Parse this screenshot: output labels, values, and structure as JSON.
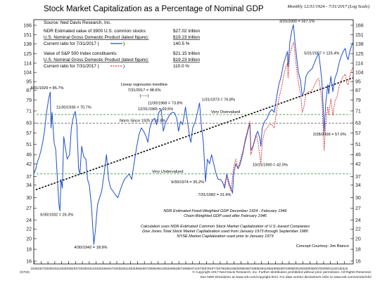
{
  "chart_data": {
    "type": "line",
    "title": "Stock Market Capitalization as a Percentage of Nominal GDP",
    "subtitle": "Monthly 12/31/1924 - 7/31/2017 (Log Scale)",
    "source": "Source: Ned Davis Research, Inc.",
    "scale": "log",
    "ylim": [
      16,
      166
    ],
    "y_ticks": [
      16,
      18,
      20,
      22,
      24,
      27,
      30,
      34,
      37,
      42,
      46,
      51,
      57,
      63,
      71,
      79,
      87,
      95,
      104,
      114,
      125,
      138,
      151,
      166
    ],
    "x_ticks": [
      "1925",
      "1927",
      "1929",
      "1931",
      "1933",
      "1935",
      "1937",
      "1939",
      "1941",
      "1943",
      "1945",
      "1947",
      "1949",
      "1951",
      "1953",
      "1955",
      "1957",
      "1959",
      "1961",
      "1963",
      "1965",
      "1967",
      "1969",
      "1971",
      "1973",
      "1975",
      "1977",
      "1979",
      "1981",
      "1983",
      "1985",
      "1987",
      "1989",
      "1991",
      "1993",
      "1995",
      "1997",
      "1999",
      "2001",
      "2003",
      "2005",
      "2007",
      "2009",
      "2011",
      "2013",
      "2015"
    ],
    "xlim": [
      1924.9,
      2017.6
    ],
    "info_box_1": {
      "rows": [
        {
          "label": "NDR Estimated value of 3900 U.S. common stocks:",
          "value": "$27.02 trillion"
        },
        {
          "label": "U.S. Nominal Gross Domestic Product (latest figure):",
          "value": "$19.23 trillion"
        },
        {
          "label": "Current ratio for 7/31/2017 (",
          "value": "140.5 %"
        }
      ]
    },
    "info_box_2": {
      "rows": [
        {
          "label": "Value of S&P 500 Index constituents:",
          "value": "$21.15 trillion"
        },
        {
          "label": "U.S. Nominal Gross Domestic Product (latest figure):",
          "value": "$19.23 trillion"
        },
        {
          "label": "Current ratio for 7/31/2017 (",
          "value": "110.0 %"
        }
      ]
    },
    "regression": {
      "label_1": "Linear regression trendline",
      "label_2": "7/31/2017 = 98.6%",
      "label_3": "(-----)",
      "start": [
        1925.5,
        32.5
      ],
      "end": [
        2017.5,
        98.6
      ]
    },
    "reference_lines": [
      {
        "name": "Very Overvalued",
        "value": 68.5,
        "color": "#2e8b2e"
      },
      {
        "name": "Norm Since 1925 = 62.8%",
        "value": 62.8,
        "color": "#555555"
      },
      {
        "name": "Very Undervalued",
        "value": 38.0,
        "color": "#2e8b2e"
      }
    ],
    "series": [
      {
        "color": "#1f4fcf",
        "points": [
          [
            1924.9,
            38
          ],
          [
            1925.5,
            40
          ],
          [
            1926,
            43
          ],
          [
            1926.5,
            45
          ],
          [
            1927,
            48
          ],
          [
            1927.5,
            52
          ],
          [
            1928,
            58
          ],
          [
            1928.5,
            68
          ],
          [
            1929.2,
            80
          ],
          [
            1929.67,
            85.7
          ],
          [
            1929.9,
            60
          ],
          [
            1930.2,
            70
          ],
          [
            1930.8,
            52
          ],
          [
            1931.3,
            48
          ],
          [
            1931.8,
            35
          ],
          [
            1932.2,
            28
          ],
          [
            1932.5,
            26.3
          ],
          [
            1932.8,
            36
          ],
          [
            1933.2,
            33
          ],
          [
            1933.6,
            55
          ],
          [
            1934,
            50
          ],
          [
            1934.6,
            44
          ],
          [
            1935.3,
            46
          ],
          [
            1935.8,
            60
          ],
          [
            1936.3,
            66
          ],
          [
            1936.92,
            70.7
          ],
          [
            1937.4,
            62
          ],
          [
            1937.9,
            40
          ],
          [
            1938.3,
            38
          ],
          [
            1938.8,
            50
          ],
          [
            1939.4,
            45
          ],
          [
            1940,
            44
          ],
          [
            1940.5,
            36
          ],
          [
            1941,
            34
          ],
          [
            1941.6,
            28
          ],
          [
            1942.33,
            18.9
          ],
          [
            1942.8,
            22
          ],
          [
            1943.4,
            28
          ],
          [
            1944,
            30
          ],
          [
            1944.6,
            32
          ],
          [
            1945.3,
            38
          ],
          [
            1946,
            46
          ],
          [
            1946.6,
            36
          ],
          [
            1947.2,
            33
          ],
          [
            1947.9,
            32
          ],
          [
            1948.5,
            31
          ],
          [
            1949.3,
            30
          ],
          [
            1949.9,
            32
          ],
          [
            1950.5,
            34
          ],
          [
            1951.2,
            36
          ],
          [
            1951.9,
            37
          ],
          [
            1952.6,
            38
          ],
          [
            1953.3,
            36
          ],
          [
            1954,
            42
          ],
          [
            1954.7,
            49
          ],
          [
            1955.4,
            56
          ],
          [
            1956.1,
            60
          ],
          [
            1956.8,
            58
          ],
          [
            1957.5,
            55
          ],
          [
            1958,
            52
          ],
          [
            1958.6,
            60
          ],
          [
            1959.2,
            64
          ],
          [
            1959.9,
            66
          ],
          [
            1960.5,
            62
          ],
          [
            1961.2,
            70
          ],
          [
            1961.9,
            72
          ],
          [
            1962.5,
            58
          ],
          [
            1963.1,
            63
          ],
          [
            1963.8,
            66
          ],
          [
            1964.5,
            69
          ],
          [
            1965.2,
            70
          ],
          [
            1965.8,
            69.5
          ],
          [
            1966.4,
            66
          ],
          [
            1966.9,
            58
          ],
          [
            1967.5,
            64
          ],
          [
            1968.1,
            62
          ],
          [
            1968.92,
            73.8
          ],
          [
            1969.5,
            64
          ],
          [
            1970.2,
            54
          ],
          [
            1970.5,
            52
          ],
          [
            1971,
            60
          ],
          [
            1971.8,
            64
          ],
          [
            1972.4,
            70
          ],
          [
            1973.0,
            76.8
          ],
          [
            1973.5,
            62
          ],
          [
            1974.1,
            52
          ],
          [
            1974.74,
            35.2
          ],
          [
            1975.3,
            44
          ],
          [
            1975.9,
            42
          ],
          [
            1976.5,
            46
          ],
          [
            1977.1,
            42
          ],
          [
            1977.8,
            38
          ],
          [
            1978.4,
            36
          ],
          [
            1979,
            36
          ],
          [
            1979.7,
            35
          ],
          [
            1980.3,
            33
          ],
          [
            1980.9,
            38
          ],
          [
            1981.5,
            35
          ],
          [
            1982.58,
            31.4
          ],
          [
            1982.9,
            38
          ],
          [
            1983.5,
            42
          ],
          [
            1984.2,
            40
          ],
          [
            1984.8,
            42
          ],
          [
            1985.5,
            46
          ],
          [
            1986.2,
            52
          ],
          [
            1987.6,
            63
          ],
          [
            1987.9,
            48
          ],
          [
            1988.5,
            50
          ],
          [
            1989.4,
            56
          ],
          [
            1989.9,
            58
          ],
          [
            1990.5,
            54
          ],
          [
            1990.79,
            50
          ],
          [
            1991.2,
            60
          ],
          [
            1991.9,
            64
          ],
          [
            1992.6,
            66
          ],
          [
            1993.3,
            70
          ],
          [
            1994,
            72
          ],
          [
            1994.7,
            70
          ],
          [
            1995.4,
            82
          ],
          [
            1996,
            92
          ],
          [
            1996.7,
            100
          ],
          [
            1997.3,
            112
          ],
          [
            1997.9,
            120
          ],
          [
            1998.5,
            128
          ],
          [
            1998.7,
            110
          ],
          [
            1999.2,
            140
          ],
          [
            1999.8,
            158
          ],
          [
            2000.25,
            167.1
          ],
          [
            2000.7,
            140
          ],
          [
            2001.2,
            120
          ],
          [
            2001.7,
            104
          ],
          [
            2002.3,
            96
          ],
          [
            2002.8,
            82
          ],
          [
            2003.3,
            86
          ],
          [
            2003.9,
            100
          ],
          [
            2004.5,
            104
          ],
          [
            2005.1,
            106
          ],
          [
            2005.7,
            108
          ],
          [
            2006.3,
            114
          ],
          [
            2006.9,
            120
          ],
          [
            2007.58,
            125.4
          ],
          [
            2008.0,
            112
          ],
          [
            2008.5,
            96
          ],
          [
            2008.9,
            72
          ],
          [
            2009.17,
            57.6
          ],
          [
            2009.6,
            76
          ],
          [
            2010.2,
            92
          ],
          [
            2010.5,
            84
          ],
          [
            2011.1,
            100
          ],
          [
            2011.7,
            86
          ],
          [
            2012.3,
            98
          ],
          [
            2012.9,
            104
          ],
          [
            2013.5,
            114
          ],
          [
            2014.1,
            122
          ],
          [
            2014.7,
            128
          ],
          [
            2015.3,
            132
          ],
          [
            2015.7,
            122
          ],
          [
            2016.1,
            118
          ],
          [
            2016.6,
            128
          ],
          [
            2017.0,
            134
          ],
          [
            2017.58,
            140.5
          ]
        ]
      },
      {
        "color": "#d42a2a",
        "dash": true,
        "points": [
          [
            1980.2,
            34
          ],
          [
            1980.8,
            37
          ],
          [
            1981.5,
            34
          ],
          [
            1982.2,
            32
          ],
          [
            1982.8,
            40
          ],
          [
            1983.5,
            44
          ],
          [
            1984.2,
            40
          ],
          [
            1984.9,
            44
          ],
          [
            1985.6,
            48
          ],
          [
            1986.3,
            54
          ],
          [
            1987.6,
            64
          ],
          [
            1987.9,
            46
          ],
          [
            1988.6,
            50
          ],
          [
            1989.5,
            56
          ],
          [
            1990.0,
            52
          ],
          [
            1990.79,
            42
          ],
          [
            1991.2,
            52
          ],
          [
            1991.9,
            58
          ],
          [
            1992.6,
            60
          ],
          [
            1993.3,
            62
          ],
          [
            1994,
            62
          ],
          [
            1994.7,
            60
          ],
          [
            1995.4,
            72
          ],
          [
            1996,
            80
          ],
          [
            1996.7,
            88
          ],
          [
            1997.3,
            98
          ],
          [
            1997.9,
            108
          ],
          [
            1998.5,
            114
          ],
          [
            1998.7,
            98
          ],
          [
            1999.2,
            124
          ],
          [
            1999.9,
            136
          ],
          [
            2000.3,
            140
          ],
          [
            2000.8,
            120
          ],
          [
            2001.3,
            104
          ],
          [
            2001.8,
            92
          ],
          [
            2002.4,
            82
          ],
          [
            2002.8,
            70
          ],
          [
            2003.3,
            74
          ],
          [
            2003.9,
            84
          ],
          [
            2004.6,
            86
          ],
          [
            2005.2,
            86
          ],
          [
            2005.8,
            88
          ],
          [
            2006.4,
            92
          ],
          [
            2007.0,
            96
          ],
          [
            2007.6,
            98
          ],
          [
            2008.1,
            88
          ],
          [
            2008.6,
            76
          ],
          [
            2008.9,
            58
          ],
          [
            2009.17,
            48
          ],
          [
            2009.6,
            62
          ],
          [
            2010.2,
            74
          ],
          [
            2010.5,
            68
          ],
          [
            2011.1,
            80
          ],
          [
            2011.7,
            68
          ],
          [
            2012.3,
            78
          ],
          [
            2012.9,
            82
          ],
          [
            2013.5,
            90
          ],
          [
            2014.1,
            96
          ],
          [
            2014.7,
            100
          ],
          [
            2015.3,
            102
          ],
          [
            2015.7,
            94
          ],
          [
            2016.1,
            92
          ],
          [
            2016.6,
            100
          ],
          [
            2017.0,
            105
          ],
          [
            2017.58,
            110
          ]
        ]
      }
    ],
    "annotations": [
      {
        "text": "8/31/1929 = 85.7%",
        "x": 1929.67,
        "y": 85.7,
        "anchor": "start",
        "dx": -28,
        "dy": -4
      },
      {
        "text": "11/30/1936 = 70.7%",
        "x": 1936.92,
        "y": 70.7,
        "anchor": "start",
        "dx": -27,
        "dy": -4
      },
      {
        "text": "12/31/1965 = 69.5%",
        "x": 1965.99,
        "y": 69.5,
        "anchor": "end",
        "dx": -3,
        "dy": -4
      },
      {
        "text": "11/30/1968 = 73.8%",
        "x": 1968.92,
        "y": 73.8,
        "anchor": "end",
        "dx": -4,
        "dy": -4
      },
      {
        "text": "1/31/1973 = 76.8%",
        "x": 1973.08,
        "y": 76.8,
        "anchor": "start",
        "dx": 3,
        "dy": -3
      },
      {
        "text": "6/30/1932 = 26.3%",
        "x": 1932.5,
        "y": 26.3,
        "anchor": "start",
        "dx": -28,
        "dy": 7
      },
      {
        "text": "4/30/1942 = 18.9%",
        "x": 1942.33,
        "y": 18.9,
        "anchor": "start",
        "dx": -28,
        "dy": 6
      },
      {
        "text": "9/30/1974 = 35.2%",
        "x": 1974.74,
        "y": 35.2,
        "anchor": "end",
        "dx": -2,
        "dy": 2
      },
      {
        "text": "7/31/1982 = 31.4%",
        "x": 1982.58,
        "y": 31.4,
        "anchor": "end",
        "dx": -2,
        "dy": 4
      },
      {
        "text": "10/31/1990 = 42.0%",
        "x": 1990.79,
        "y": 42.0,
        "anchor": "start",
        "dx": -12,
        "dy": 3
      },
      {
        "text": "3/31/2000 = 167.1%",
        "x": 2000.25,
        "y": 167.1,
        "anchor": "start",
        "dx": -20,
        "dy": -3
      },
      {
        "text": "5/31/2007 = 125.4%",
        "x": 2007.42,
        "y": 125.4,
        "anchor": "start",
        "dx": -20,
        "dy": 1
      },
      {
        "text": "2/28/2009 = 57.6%",
        "x": 2009.17,
        "y": 57.6,
        "anchor": "start",
        "dx": -16,
        "dy": 5
      }
    ],
    "notes": [
      "NDR Estimated Fixed-Weighted GDP December 1924 - February 1946",
      "Chain-Weighted GDP used after February 1946",
      "Calculation uses NDR Estimated Common Stock Market Capitalization of U.S.-based Companies",
      "Dow Jones Total Stock Market Capitalization used from January 1973 through September 1980",
      "NYSE Market Capitalization used prior to January 1973"
    ],
    "concept": "Concept Courtesy: Jim Bianco",
    "chart_id": "(S702)",
    "footer_1": "© Copyright 2017 Ned Davis Research, Inc. Further distribution prohibited without prior permission. All Rights Reserved.",
    "footer_2": "See NDR Disclaimer at www.ndr.com/copyright.html. For data vendor disclaimers refer to www.ndr.com/vendorinfo/"
  }
}
